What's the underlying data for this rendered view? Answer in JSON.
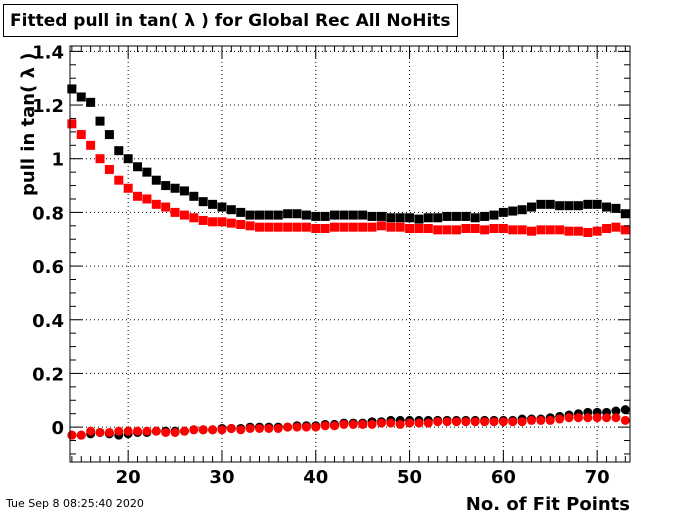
{
  "title": "Fitted pull in tan( λ ) for Global Rec All NoHits",
  "footer": "Tue Sep  8 08:25:40 2020",
  "chart_data": {
    "type": "scatter",
    "xlabel": "No. of Fit Points",
    "ylabel": "pull in tan( λ )",
    "xlim": [
      13.8,
      73.5
    ],
    "ylim": [
      -0.13,
      1.42
    ],
    "grid": true,
    "x_ticks": [
      20,
      30,
      40,
      50,
      60,
      70
    ],
    "y_ticks": [
      0,
      0.2,
      0.4,
      0.6,
      0.8,
      1,
      1.2,
      1.4
    ],
    "x_tick_labels": [
      "20",
      "30",
      "40",
      "50",
      "60",
      "70"
    ],
    "y_tick_labels": [
      "0",
      "0.2",
      "0.4",
      "0.6",
      "0.8",
      "1",
      "1.2",
      "1.4"
    ],
    "x": [
      14,
      15,
      16,
      17,
      18,
      19,
      20,
      21,
      22,
      23,
      24,
      25,
      26,
      27,
      28,
      29,
      30,
      31,
      32,
      33,
      34,
      35,
      36,
      37,
      38,
      39,
      40,
      41,
      42,
      43,
      44,
      45,
      46,
      47,
      48,
      49,
      50,
      51,
      52,
      53,
      54,
      55,
      56,
      57,
      58,
      59,
      60,
      61,
      62,
      63,
      64,
      65,
      66,
      67,
      68,
      69,
      70,
      71,
      72,
      73
    ],
    "series": [
      {
        "color": "#000000",
        "marker": "square",
        "values": [
          1.26,
          1.23,
          1.21,
          1.14,
          1.09,
          1.03,
          1.0,
          0.97,
          0.95,
          0.92,
          0.9,
          0.89,
          0.88,
          0.86,
          0.84,
          0.83,
          0.82,
          0.81,
          0.8,
          0.79,
          0.79,
          0.79,
          0.79,
          0.795,
          0.795,
          0.79,
          0.785,
          0.785,
          0.79,
          0.79,
          0.79,
          0.79,
          0.785,
          0.785,
          0.78,
          0.78,
          0.78,
          0.775,
          0.78,
          0.78,
          0.785,
          0.785,
          0.785,
          0.78,
          0.785,
          0.79,
          0.8,
          0.805,
          0.81,
          0.82,
          0.83,
          0.83,
          0.825,
          0.825,
          0.825,
          0.83,
          0.83,
          0.82,
          0.815,
          0.795
        ]
      },
      {
        "color": "#ff0000",
        "marker": "square",
        "values": [
          1.13,
          1.09,
          1.05,
          1.0,
          0.96,
          0.92,
          0.89,
          0.86,
          0.85,
          0.83,
          0.82,
          0.8,
          0.79,
          0.78,
          0.77,
          0.765,
          0.765,
          0.76,
          0.755,
          0.75,
          0.745,
          0.745,
          0.745,
          0.745,
          0.745,
          0.745,
          0.74,
          0.74,
          0.745,
          0.745,
          0.745,
          0.745,
          0.745,
          0.75,
          0.745,
          0.745,
          0.74,
          0.74,
          0.74,
          0.735,
          0.735,
          0.735,
          0.74,
          0.74,
          0.735,
          0.74,
          0.74,
          0.735,
          0.735,
          0.73,
          0.735,
          0.735,
          0.735,
          0.73,
          0.73,
          0.725,
          0.73,
          0.74,
          0.745,
          0.735
        ]
      },
      {
        "color": "#000000",
        "marker": "circle",
        "values": [
          -0.03,
          -0.03,
          -0.025,
          -0.02,
          -0.025,
          -0.03,
          -0.025,
          -0.02,
          -0.02,
          -0.015,
          -0.015,
          -0.015,
          -0.015,
          -0.01,
          -0.01,
          -0.01,
          -0.005,
          -0.005,
          -0.005,
          0.0,
          0.0,
          0.0,
          0.0,
          0.0,
          0.005,
          0.005,
          0.005,
          0.01,
          0.01,
          0.015,
          0.015,
          0.015,
          0.02,
          0.02,
          0.025,
          0.025,
          0.025,
          0.025,
          0.025,
          0.025,
          0.025,
          0.025,
          0.025,
          0.025,
          0.025,
          0.025,
          0.025,
          0.025,
          0.03,
          0.03,
          0.03,
          0.035,
          0.04,
          0.045,
          0.05,
          0.055,
          0.055,
          0.055,
          0.06,
          0.065
        ]
      },
      {
        "color": "#ff0000",
        "marker": "circle",
        "values": [
          -0.03,
          -0.03,
          -0.015,
          -0.02,
          -0.02,
          -0.015,
          -0.015,
          -0.015,
          -0.015,
          -0.015,
          -0.02,
          -0.02,
          -0.015,
          -0.01,
          -0.01,
          -0.01,
          -0.01,
          -0.005,
          -0.01,
          -0.005,
          -0.005,
          -0.005,
          -0.005,
          0.0,
          0.0,
          0.0,
          0.0,
          0.005,
          0.005,
          0.01,
          0.01,
          0.01,
          0.01,
          0.015,
          0.015,
          0.01,
          0.015,
          0.015,
          0.015,
          0.02,
          0.02,
          0.02,
          0.02,
          0.02,
          0.02,
          0.02,
          0.02,
          0.02,
          0.02,
          0.025,
          0.025,
          0.025,
          0.03,
          0.035,
          0.035,
          0.035,
          0.035,
          0.035,
          0.035,
          0.025
        ]
      }
    ]
  }
}
